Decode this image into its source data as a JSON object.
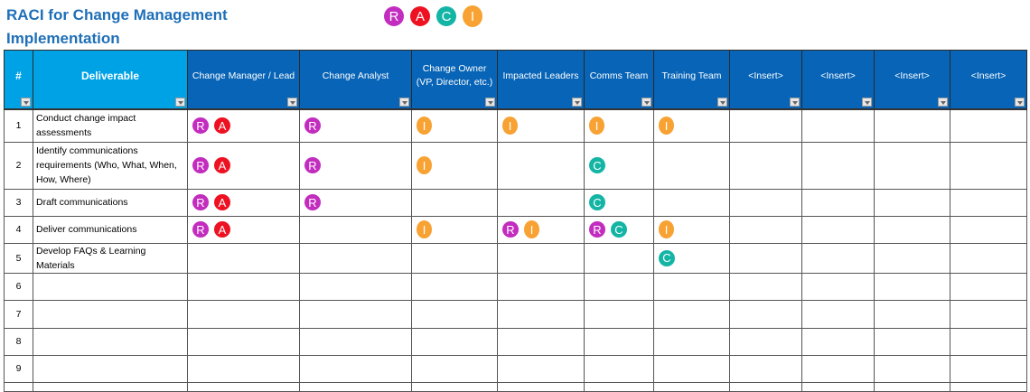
{
  "title": "RACI for Change Management Implementation",
  "legend": [
    "R",
    "A",
    "C",
    "I"
  ],
  "colors": {
    "R": "#c22dbf",
    "A": "#ee1122",
    "C": "#14b5a5",
    "I": "#f7a233",
    "header": "#0764b7",
    "header_light": "#00a2e6",
    "title": "#1f6fb8"
  },
  "columns": [
    "#",
    "Deliverable",
    "Change Manager / Lead",
    "Change Analyst",
    "Change Owner (VP, Director, etc.)",
    "Impacted Leaders",
    "Comms Team",
    "Training Team",
    "<Insert>",
    "<Insert>",
    "<Insert>",
    "<Insert>"
  ],
  "rows": [
    {
      "num": "1",
      "deliverable": "Conduct change impact assessments",
      "cells": [
        [
          "R",
          "A"
        ],
        [
          "R"
        ],
        [
          "I"
        ],
        [
          "I"
        ],
        [
          "I"
        ],
        [
          "I"
        ],
        [],
        [],
        [],
        []
      ]
    },
    {
      "num": "2",
      "deliverable": "Identify communications requirements (Who, What, When, How, Where)",
      "cells": [
        [
          "R",
          "A"
        ],
        [
          "R"
        ],
        [
          "I"
        ],
        [],
        [
          "C"
        ],
        [],
        [],
        [],
        [],
        []
      ]
    },
    {
      "num": "3",
      "deliverable": "Draft communications",
      "cells": [
        [
          "R",
          "A"
        ],
        [
          "R"
        ],
        [],
        [],
        [
          "C"
        ],
        [],
        [],
        [],
        [],
        []
      ]
    },
    {
      "num": "4",
      "deliverable": "Deliver communications",
      "cells": [
        [
          "R",
          "A"
        ],
        [],
        [
          "I"
        ],
        [
          "R",
          "I"
        ],
        [
          "R",
          "C"
        ],
        [
          "I"
        ],
        [],
        [],
        [],
        []
      ]
    },
    {
      "num": "5",
      "deliverable": "Develop FAQs & Learning Materials",
      "cells": [
        [],
        [],
        [],
        [],
        [],
        [
          "C"
        ],
        [],
        [],
        [],
        []
      ]
    },
    {
      "num": "6",
      "deliverable": "",
      "cells": [
        [],
        [],
        [],
        [],
        [],
        [],
        [],
        [],
        [],
        []
      ]
    },
    {
      "num": "7",
      "deliverable": "",
      "cells": [
        [],
        [],
        [],
        [],
        [],
        [],
        [],
        [],
        [],
        []
      ]
    },
    {
      "num": "8",
      "deliverable": "",
      "cells": [
        [],
        [],
        [],
        [],
        [],
        [],
        [],
        [],
        [],
        []
      ]
    },
    {
      "num": "9",
      "deliverable": "",
      "cells": [
        [],
        [],
        [],
        [],
        [],
        [],
        [],
        [],
        [],
        []
      ]
    },
    {
      "num": "",
      "deliverable": "",
      "cells": [
        [],
        [],
        [],
        [],
        [],
        [],
        [],
        [],
        [],
        []
      ]
    }
  ]
}
